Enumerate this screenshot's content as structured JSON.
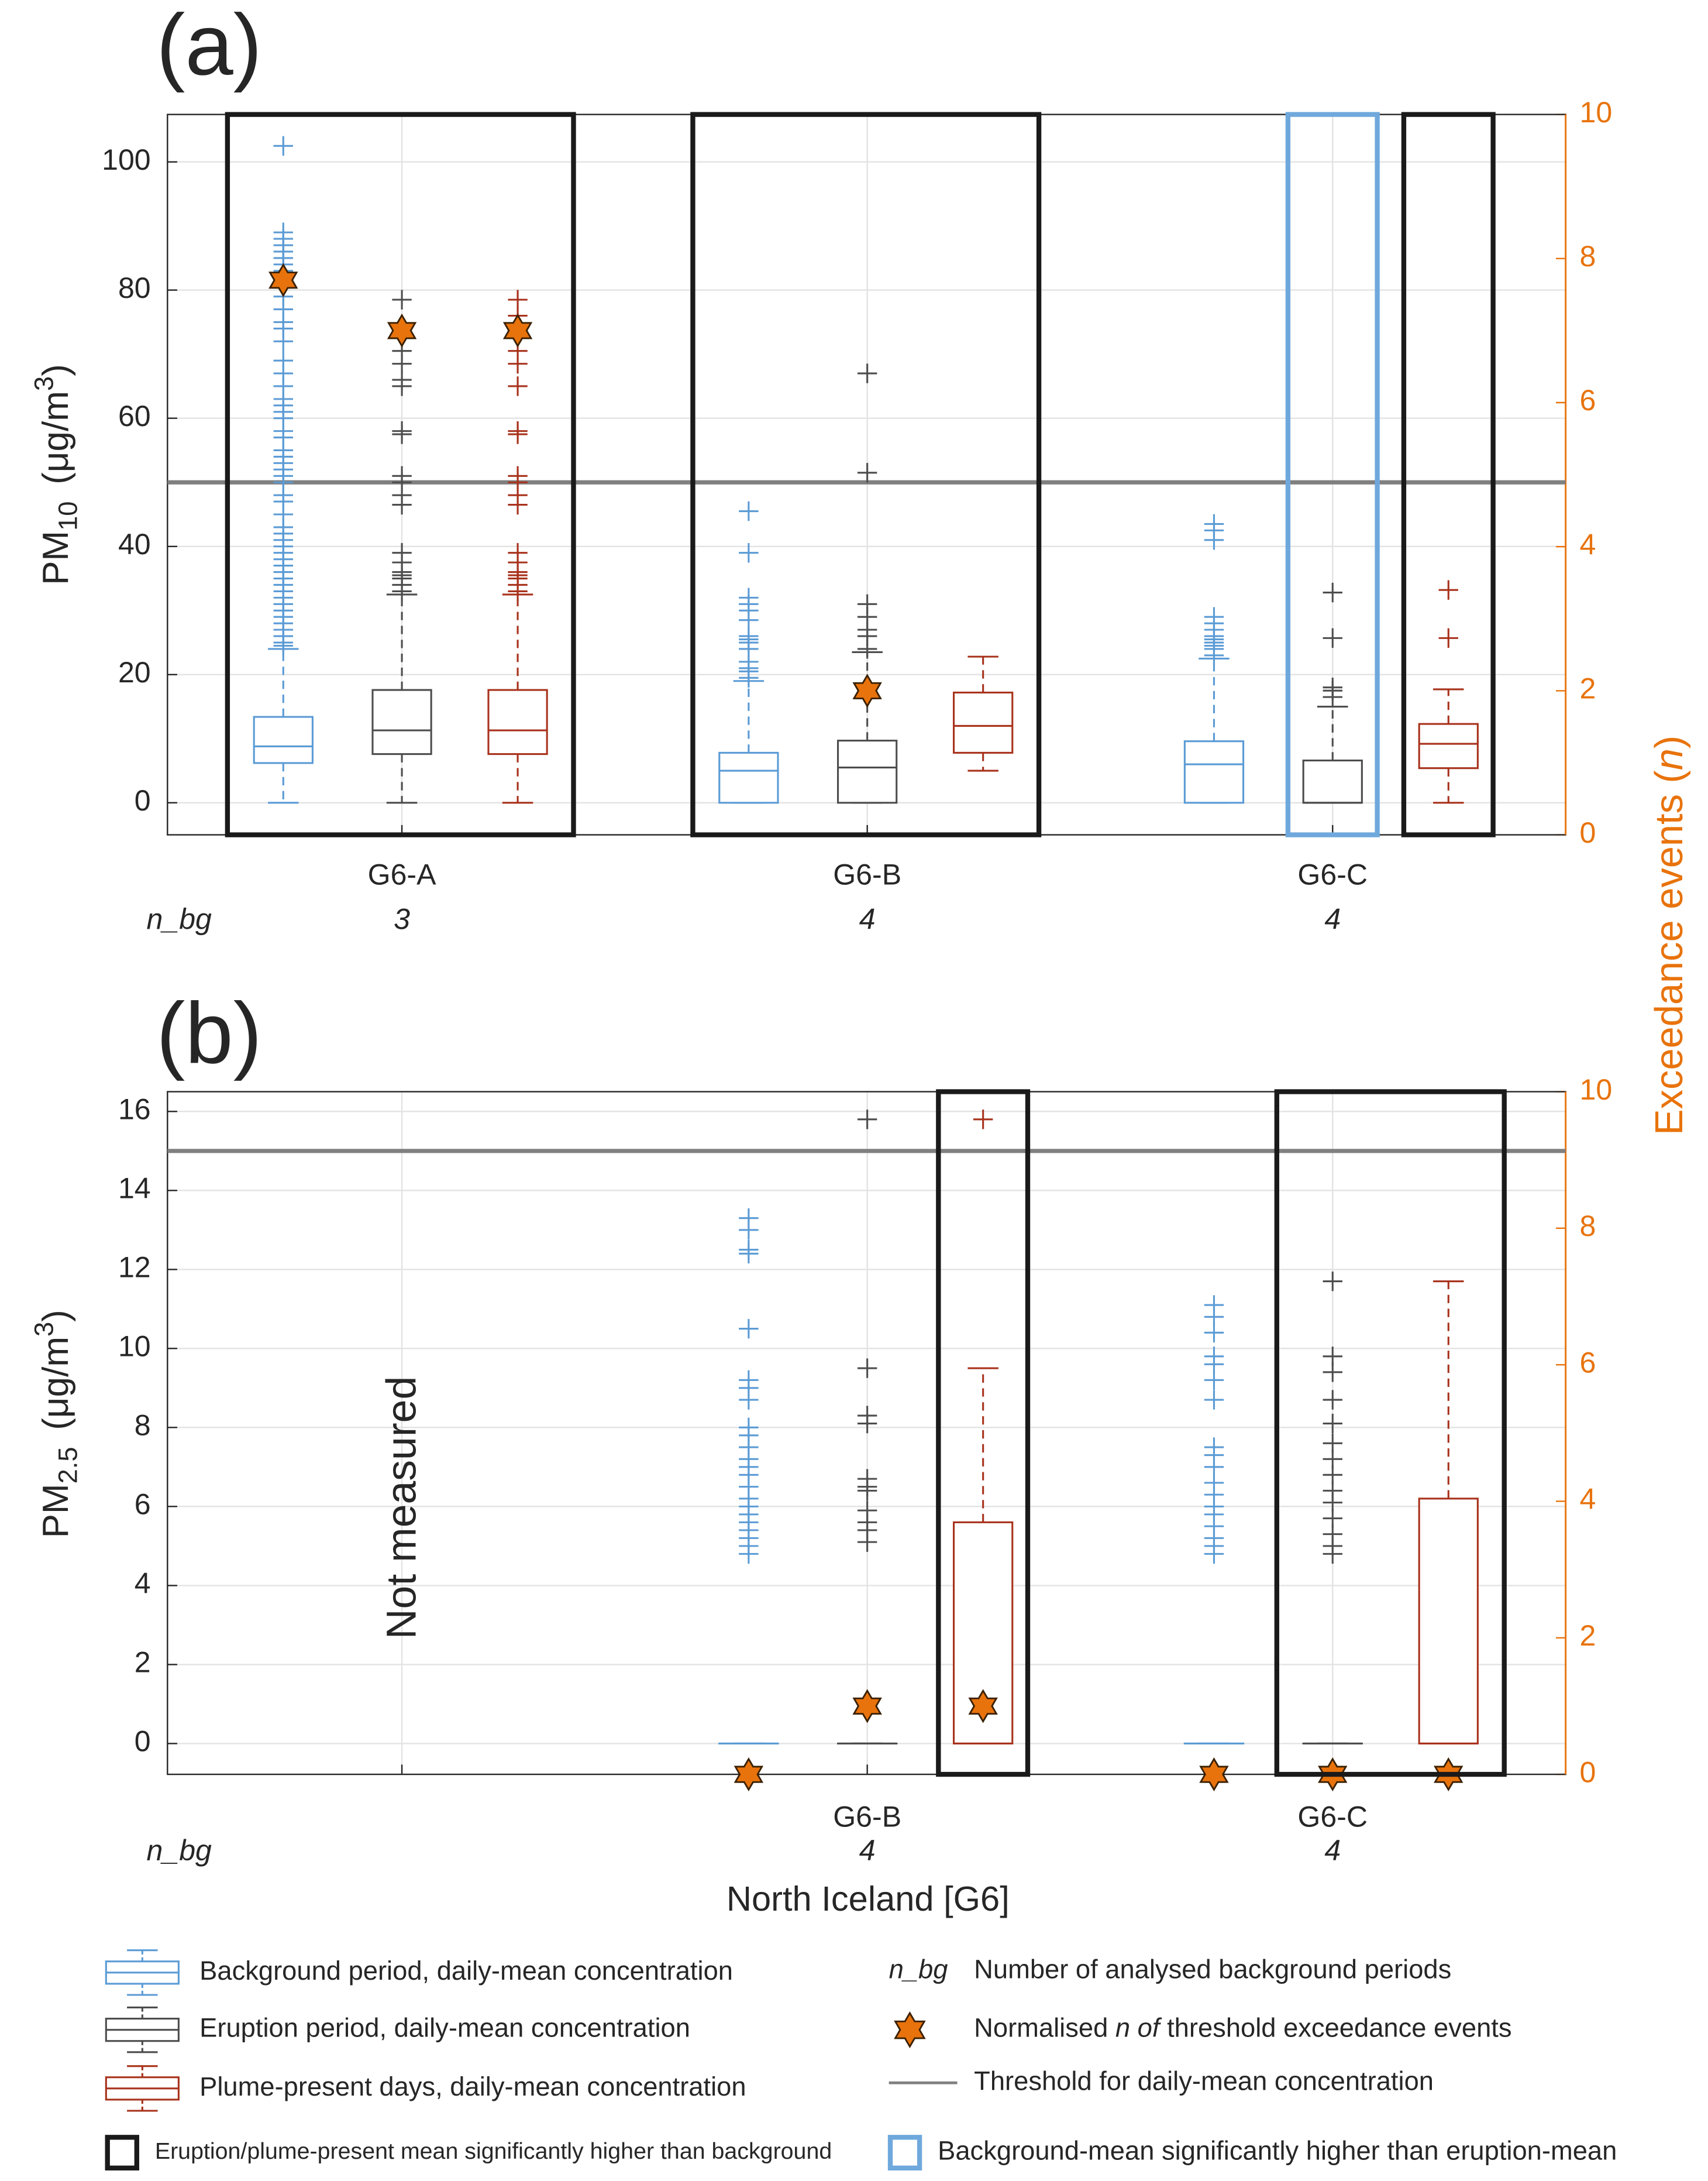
{
  "chart_data": [
    {
      "type": "box",
      "panel_label": "(a)",
      "ylabel": {
        "main": "PM",
        "sub": "10",
        "unit": "(μg/m",
        "sup": "3",
        "end": ")"
      },
      "y2label": {
        "before": "Exceedance events (",
        "italic": "n",
        "after": ")"
      },
      "categories": [
        "G6-A",
        "G6-B",
        "G6-C"
      ],
      "n_bg_label": "n_bg",
      "n_bg": [
        3,
        4,
        4
      ],
      "ylim": [
        -5,
        107.4
      ],
      "yticks": [
        0,
        20,
        40,
        60,
        80,
        100
      ],
      "y2lim": [
        0,
        10
      ],
      "y2ticks": [
        0,
        2,
        4,
        6,
        8,
        10
      ],
      "y2color": "#e8730c",
      "grid": true,
      "threshold": 50,
      "threshold_color": "#808080",
      "star_color": "#e8730c",
      "series": [
        {
          "color": "#5b9bd5",
          "boxes": [
            {
              "low": 0,
              "q1": 6.2,
              "median": 8.8,
              "q3": 13.4,
              "high": 24,
              "outliers": [
                24.5,
                25,
                26,
                27,
                28,
                29,
                30,
                31,
                32,
                33,
                34,
                35,
                36,
                37,
                38,
                39,
                40,
                41,
                42,
                43,
                45,
                47,
                48,
                50,
                51,
                52,
                53,
                54,
                55,
                57,
                58,
                60,
                61,
                62,
                63,
                65,
                67,
                69,
                72,
                74,
                75,
                77,
                79,
                81,
                83,
                84,
                85,
                86,
                87,
                88,
                89,
                102.5
              ],
              "exceedance": 7.7,
              "frame": "#1a1a1a"
            },
            {
              "low": 0,
              "q1": 0,
              "median": 5,
              "q3": 7.8,
              "high": 19,
              "outliers": [
                19.5,
                20.5,
                21,
                22,
                24,
                25,
                25.5,
                26,
                28.5,
                30,
                31,
                32,
                39,
                45.5
              ],
              "exceedance": null,
              "frame": "#1a1a1a"
            },
            {
              "low": 0,
              "q1": 0,
              "median": 6,
              "q3": 9.6,
              "high": 22.5,
              "outliers": [
                23,
                24,
                24.5,
                25,
                25.5,
                26,
                27,
                28,
                29,
                41,
                42.5,
                43.5
              ],
              "exceedance": null,
              "frame": null
            }
          ]
        },
        {
          "color": "#4d4d4d",
          "boxes": [
            {
              "low": 0,
              "q1": 7.6,
              "median": 11.3,
              "q3": 17.6,
              "high": 32.5,
              "outliers": [
                33,
                34,
                35,
                35.5,
                36,
                37.5,
                39,
                46.5,
                48,
                50,
                51,
                57.5,
                58,
                65,
                66,
                68.5,
                70.5,
                78.5
              ],
              "exceedance": 7,
              "frame": "#1a1a1a"
            },
            {
              "low": 0,
              "q1": 0,
              "median": 5.5,
              "q3": 9.7,
              "high": 23.5,
              "outliers": [
                24,
                26,
                27,
                29,
                31,
                51.5,
                67
              ],
              "exceedance": 2,
              "frame": "#1a1a1a"
            },
            {
              "low": 0,
              "q1": 0,
              "median": 0,
              "q3": 6.6,
              "high": 15,
              "outliers": [
                16.5,
                17.5,
                18,
                25.7,
                32.8
              ],
              "exceedance": null,
              "frame": "#6fa8dc"
            }
          ]
        },
        {
          "color": "#a8321c",
          "boxes": [
            {
              "low": 0,
              "q1": 7.6,
              "median": 11.3,
              "q3": 17.6,
              "high": 32.5,
              "outliers": [
                33,
                34,
                35,
                35.5,
                36,
                37.5,
                39,
                46.5,
                48,
                50,
                51,
                57.5,
                58,
                65,
                68.5,
                70.5,
                76,
                78.5
              ],
              "exceedance": 7,
              "frame": "#1a1a1a"
            },
            {
              "low": 5,
              "q1": 7.8,
              "median": 12,
              "q3": 17.2,
              "high": 22.8,
              "outliers": [],
              "exceedance": null,
              "frame": "#1a1a1a"
            },
            {
              "low": 0,
              "q1": 5.4,
              "median": 9.2,
              "q3": 12.3,
              "high": 17.7,
              "outliers": [
                25.7,
                33.2
              ],
              "exceedance": null,
              "frame": "#1a1a1a"
            }
          ]
        }
      ]
    },
    {
      "type": "box",
      "panel_label": "(b)",
      "ylabel": {
        "main": "PM",
        "sub": "2.5",
        "unit": "(μg/m",
        "sup": "3",
        "end": ")"
      },
      "categories": [
        null,
        "G6-B",
        "G6-C"
      ],
      "n_bg_label": "n_bg",
      "n_bg": [
        null,
        4,
        4
      ],
      "annotation": "Not measured",
      "xlabel": "North Iceland [G6]",
      "ylim": [
        -0.78,
        16.5
      ],
      "yticks": [
        0,
        2,
        4,
        6,
        8,
        10,
        12,
        14,
        16
      ],
      "y2lim": [
        0,
        10
      ],
      "y2ticks": [
        0,
        2,
        4,
        6,
        8,
        10
      ],
      "y2color": "#e8730c",
      "grid": true,
      "threshold": 15,
      "threshold_color": "#808080",
      "star_color": "#e8730c",
      "series": [
        {
          "color": "#5b9bd5",
          "boxes": [
            null,
            {
              "low": 0,
              "q1": 0,
              "median": 0,
              "q3": 0,
              "high": 0,
              "outliers": [
                4.8,
                5,
                5.2,
                5.4,
                5.6,
                5.8,
                6,
                6.2,
                6.5,
                6.8,
                7,
                7.2,
                7.5,
                7.8,
                8,
                8.7,
                9,
                9.2,
                10.5,
                12.4,
                12.5,
                13,
                13.3
              ],
              "exceedance": 0,
              "frame": null
            },
            {
              "low": 0,
              "q1": 0,
              "median": 0,
              "q3": 0,
              "high": 0,
              "outliers": [
                4.8,
                5,
                5.2,
                5.5,
                5.8,
                6,
                6.3,
                6.6,
                7,
                7.3,
                7.5,
                8.7,
                9.2,
                9.6,
                9.8,
                10.4,
                10.8,
                11.1
              ],
              "exceedance": 0,
              "frame": null
            }
          ]
        },
        {
          "color": "#4d4d4d",
          "boxes": [
            null,
            {
              "low": 0,
              "q1": 0,
              "median": 0,
              "q3": 0,
              "high": 0,
              "outliers": [
                5.1,
                5.4,
                5.6,
                5.9,
                6.4,
                6.5,
                6.7,
                8.1,
                8.3,
                9.5,
                15.8
              ],
              "exceedance": 1,
              "frame": null
            },
            {
              "low": 0,
              "q1": 0,
              "median": 0,
              "q3": 0,
              "high": 0,
              "outliers": [
                4.8,
                5,
                5.3,
                5.7,
                6.1,
                6.4,
                6.8,
                7.2,
                7.6,
                8.1,
                8.7,
                9.4,
                9.8,
                11.7
              ],
              "exceedance": 0,
              "frame": "#1a1a1a"
            }
          ]
        },
        {
          "color": "#a8321c",
          "boxes": [
            null,
            {
              "low": 0,
              "q1": 0,
              "median": 0,
              "q3": 5.6,
              "high": 9.5,
              "outliers": [
                15.8
              ],
              "exceedance": 1,
              "frame": "#1a1a1a"
            },
            {
              "low": 0,
              "q1": 0,
              "median": 0,
              "q3": 6.2,
              "high": 11.7,
              "outliers": [],
              "exceedance": 0,
              "frame": "#1a1a1a"
            }
          ]
        }
      ]
    }
  ],
  "legend": {
    "background": "Background period, daily-mean concentration",
    "eruption": "Eruption period, daily-mean concentration",
    "plume": "Plume-present days, daily-mean concentration",
    "n_bg": "n_bg",
    "n_bg_text": "Number of analysed background periods",
    "exceedance": [
      "Normalised ",
      "n of",
      " threshold exceedance events"
    ],
    "threshold": "Threshold for daily-mean concentration",
    "higher": "Eruption/plume-present mean significantly higher than background",
    "higher_color": "#1a1a1a",
    "background_higher": "Background-mean significantly higher than eruption-mean",
    "background_higher_color": "#6fa8dc"
  }
}
